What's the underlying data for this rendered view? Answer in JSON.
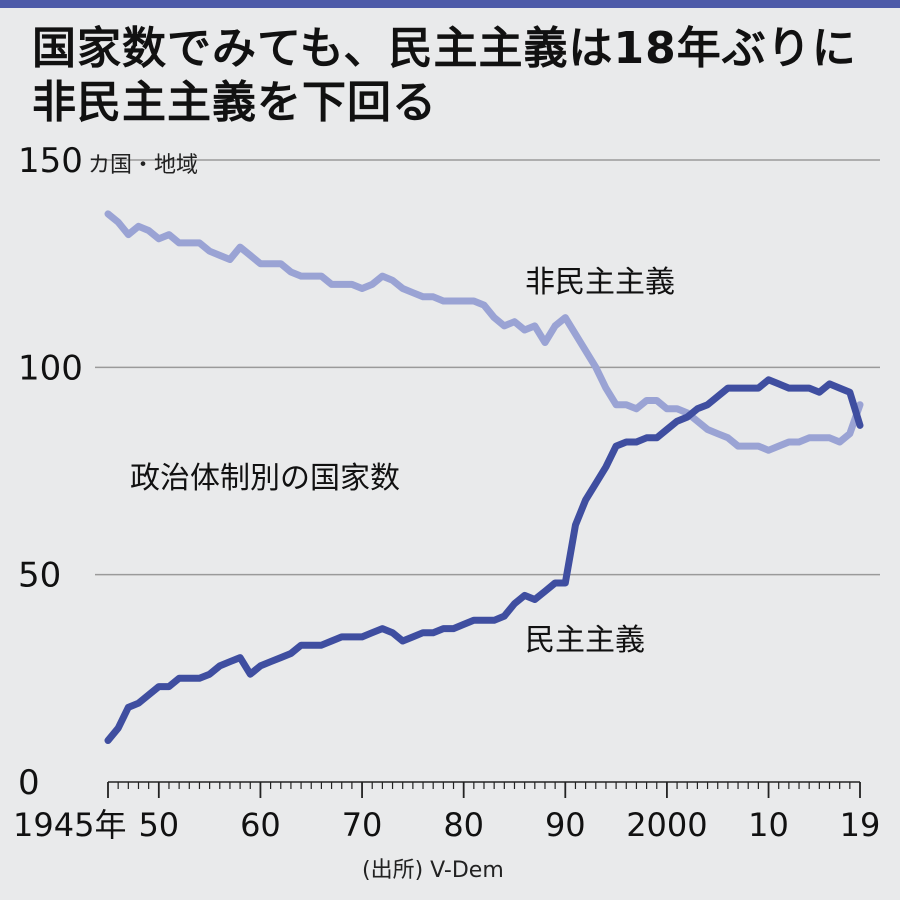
{
  "title": {
    "line1": "国家数でみても、民主主義は18年ぶりに",
    "line2": "非民主主義を下回る"
  },
  "source": "(出所) V-Dem",
  "colors": {
    "democracy": "#3f4ea0",
    "non_democracy": "#9aa3d4",
    "gridline": "#9a9a9a",
    "top_rule": "#4d5aa8",
    "background": "#e9eaeb"
  },
  "chart_data": {
    "type": "line",
    "title": "政治体制別の国家数",
    "ylabel": "カ国・地域",
    "ylim": [
      0,
      150
    ],
    "xlim": [
      1945,
      2019
    ],
    "yticks": [
      0,
      50,
      100,
      150
    ],
    "xtick_values": [
      1945,
      1950,
      1960,
      1970,
      1980,
      1990,
      2000,
      2010,
      2019
    ],
    "xtick_labels": [
      "1945年",
      "50",
      "60",
      "70",
      "80",
      "90",
      "2000",
      "10",
      "19"
    ],
    "grid": "horizontal",
    "x": [
      1945,
      1946,
      1947,
      1948,
      1949,
      1950,
      1951,
      1952,
      1953,
      1954,
      1955,
      1956,
      1957,
      1958,
      1959,
      1960,
      1961,
      1962,
      1963,
      1964,
      1965,
      1966,
      1967,
      1968,
      1969,
      1970,
      1971,
      1972,
      1973,
      1974,
      1975,
      1976,
      1977,
      1978,
      1979,
      1980,
      1981,
      1982,
      1983,
      1984,
      1985,
      1986,
      1987,
      1988,
      1989,
      1990,
      1991,
      1992,
      1993,
      1994,
      1995,
      1996,
      1997,
      1998,
      1999,
      2000,
      2001,
      2002,
      2003,
      2004,
      2005,
      2006,
      2007,
      2008,
      2009,
      2010,
      2011,
      2012,
      2013,
      2014,
      2015,
      2016,
      2017,
      2018,
      2019
    ],
    "series": [
      {
        "name": "非民主主義",
        "values": [
          137,
          135,
          132,
          134,
          133,
          131,
          132,
          130,
          130,
          130,
          128,
          127,
          126,
          129,
          127,
          125,
          125,
          125,
          123,
          122,
          122,
          122,
          120,
          120,
          120,
          119,
          120,
          122,
          121,
          119,
          118,
          117,
          117,
          116,
          116,
          116,
          116,
          115,
          112,
          110,
          111,
          109,
          110,
          106,
          110,
          112,
          108,
          104,
          100,
          95,
          91,
          91,
          90,
          92,
          92,
          90,
          90,
          89,
          87,
          85,
          84,
          83,
          81,
          81,
          81,
          80,
          81,
          82,
          82,
          83,
          83,
          83,
          82,
          84,
          91
        ]
      },
      {
        "name": "民主主義",
        "values": [
          10,
          13,
          18,
          19,
          21,
          23,
          23,
          25,
          25,
          25,
          26,
          28,
          29,
          30,
          26,
          28,
          29,
          30,
          31,
          33,
          33,
          33,
          34,
          35,
          35,
          35,
          36,
          37,
          36,
          34,
          35,
          36,
          36,
          37,
          37,
          38,
          39,
          39,
          39,
          40,
          43,
          45,
          44,
          46,
          48,
          48,
          62,
          68,
          72,
          76,
          81,
          82,
          82,
          83,
          83,
          85,
          87,
          88,
          90,
          91,
          93,
          95,
          95,
          95,
          95,
          97,
          96,
          95,
          95,
          95,
          94,
          96,
          95,
          94,
          86
        ]
      }
    ]
  }
}
